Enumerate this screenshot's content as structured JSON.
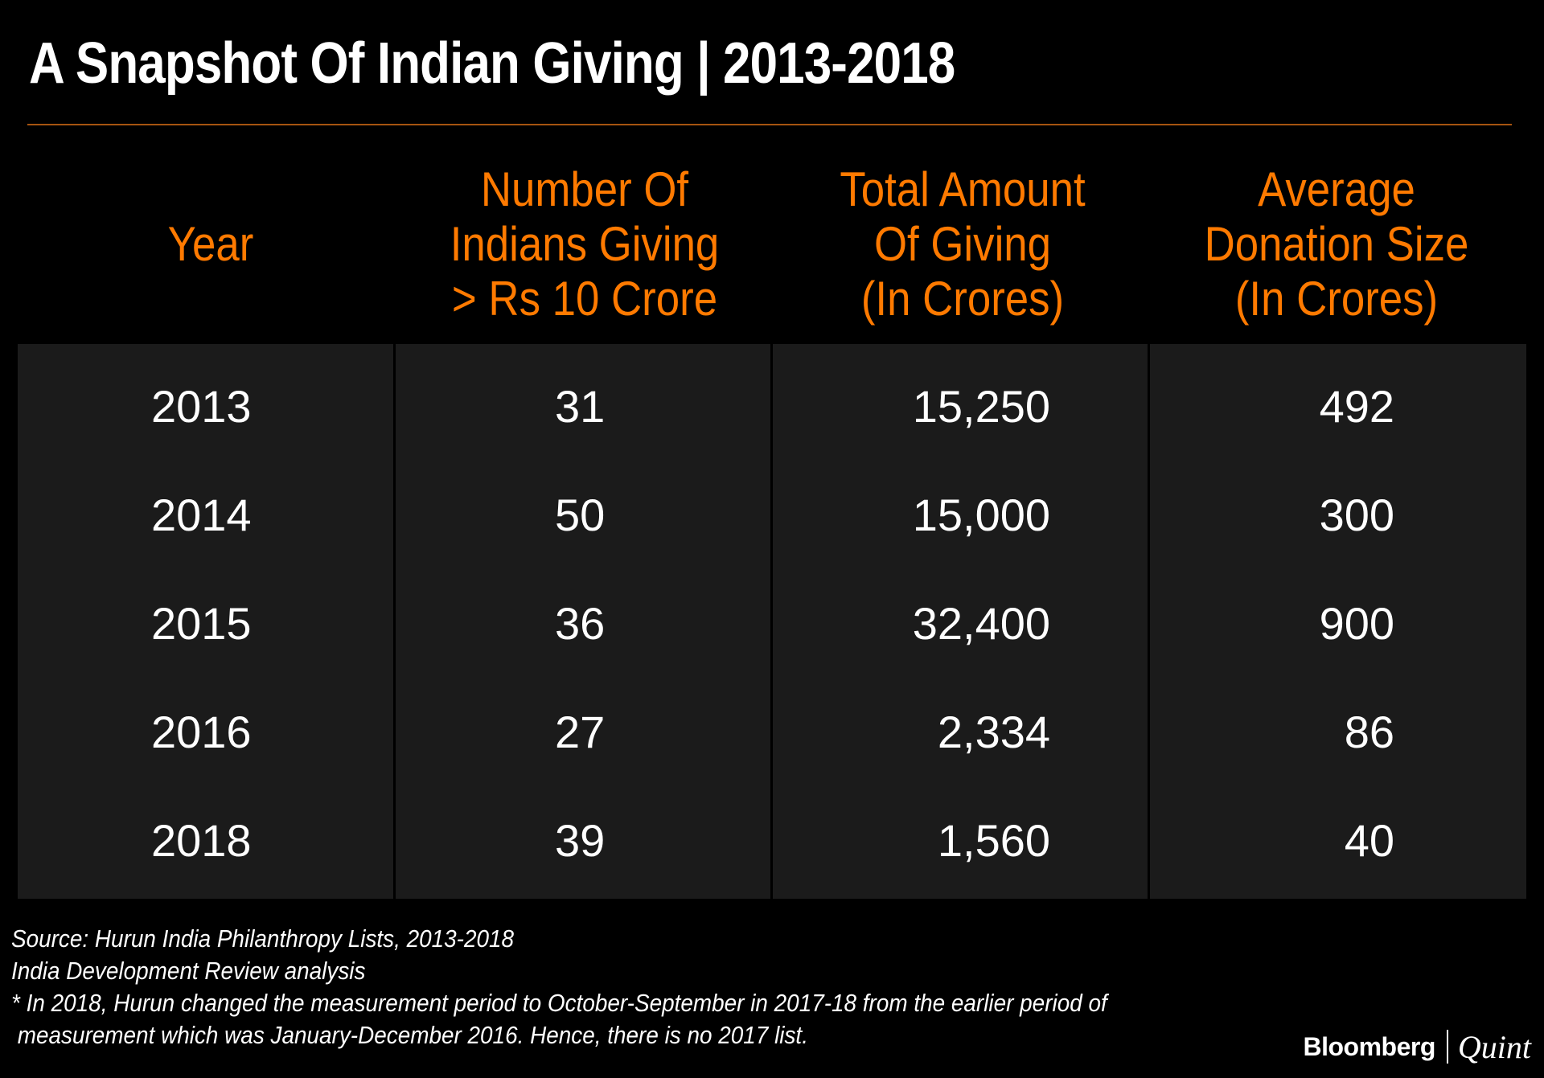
{
  "title": "A Snapshot Of Indian Giving | 2013-2018",
  "chart_data": {
    "type": "table",
    "title": "A Snapshot Of Indian Giving | 2013-2018",
    "columns": [
      {
        "label_lines": [
          "Year"
        ]
      },
      {
        "label_lines": [
          "Number Of",
          "Indians Giving",
          "> Rs 10 Crore"
        ]
      },
      {
        "label_lines": [
          "Total Amount",
          "Of Giving",
          "(In Crores)"
        ]
      },
      {
        "label_lines": [
          "Average",
          "Donation Size",
          "(In Crores)"
        ]
      }
    ],
    "rows": [
      [
        "2013",
        "31",
        "15,250",
        "492"
      ],
      [
        "2014",
        "50",
        "15,000",
        "300"
      ],
      [
        "2015",
        "36",
        "32,400",
        "900"
      ],
      [
        "2016",
        "27",
        "2,334",
        "86"
      ],
      [
        "2018",
        "39",
        "1,560",
        "40"
      ]
    ]
  },
  "footer": {
    "source": "Source: Hurun India Philanthropy Lists, 2013-2018",
    "analysis": "India Development Review analysis",
    "note_line1": "* In 2018, Hurun changed the measurement period to October-September in 2017-18 from the earlier period of",
    "note_line2": " measurement which was January-December 2016. Hence, there is no 2017 list."
  },
  "brand": {
    "name": "Bloomberg",
    "suffix": "Quint"
  },
  "colors": {
    "background": "#000000",
    "accent": "#ff7a00",
    "table_body": "#1b1b1b",
    "rule": "#a65410"
  }
}
